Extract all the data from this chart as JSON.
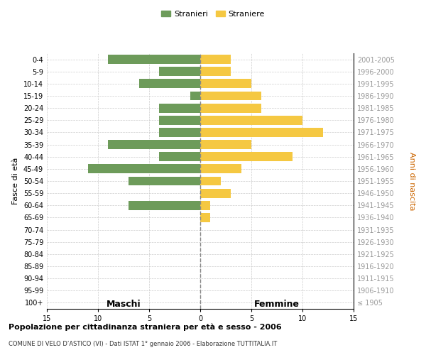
{
  "age_groups": [
    "0-4",
    "5-9",
    "10-14",
    "15-19",
    "20-24",
    "25-29",
    "30-34",
    "35-39",
    "40-44",
    "45-49",
    "50-54",
    "55-59",
    "60-64",
    "65-69",
    "70-74",
    "75-79",
    "80-84",
    "85-89",
    "90-94",
    "95-99",
    "100+"
  ],
  "birth_years": [
    "2001-2005",
    "1996-2000",
    "1991-1995",
    "1986-1990",
    "1981-1985",
    "1976-1980",
    "1971-1975",
    "1966-1970",
    "1961-1965",
    "1956-1960",
    "1951-1955",
    "1946-1950",
    "1941-1945",
    "1936-1940",
    "1931-1935",
    "1926-1930",
    "1921-1925",
    "1916-1920",
    "1911-1915",
    "1906-1910",
    "≤ 1905"
  ],
  "males": [
    9,
    4,
    6,
    1,
    4,
    4,
    4,
    9,
    4,
    11,
    7,
    0,
    7,
    0,
    0,
    0,
    0,
    0,
    0,
    0,
    0
  ],
  "females": [
    3,
    3,
    5,
    6,
    6,
    10,
    12,
    5,
    9,
    4,
    2,
    3,
    1,
    1,
    0,
    0,
    0,
    0,
    0,
    0,
    0
  ],
  "male_color": "#6d9b5a",
  "female_color": "#f5c842",
  "center_line_color": "#888888",
  "grid_color": "#cccccc",
  "title": "Popolazione per cittadinanza straniera per età e sesso - 2006",
  "subtitle": "COMUNE DI VELO D’ASTICO (VI) - Dati ISTAT 1° gennaio 2006 - Elaborazione TUTTITALIA.IT",
  "xlabel_left": "Maschi",
  "xlabel_right": "Femmine",
  "ylabel_left": "Fasce di età",
  "ylabel_right": "Anni di nascita",
  "legend_male": "Stranieri",
  "legend_female": "Straniere",
  "xlim": 15,
  "background_color": "#ffffff"
}
